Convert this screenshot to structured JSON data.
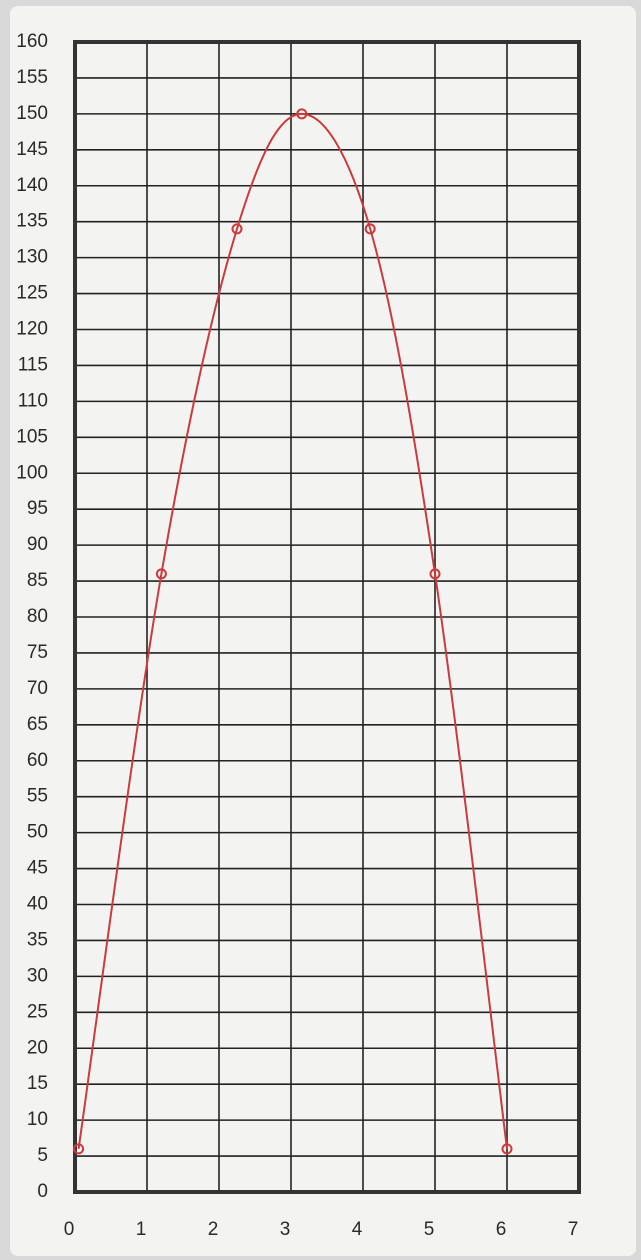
{
  "chart_data": {
    "type": "line",
    "x": [
      0.05,
      1.2,
      2.25,
      3.15,
      4.1,
      5.0,
      6.0
    ],
    "series": [
      {
        "color": "#cc3b3b",
        "values": [
          6,
          86,
          134,
          150,
          134,
          86,
          6
        ]
      }
    ],
    "xlim": [
      0,
      7
    ],
    "xticks": [
      0,
      1,
      2,
      3,
      4,
      5,
      6,
      7
    ],
    "ylim": [
      0,
      160
    ],
    "yticks": [
      0,
      5,
      10,
      15,
      20,
      25,
      30,
      35,
      40,
      45,
      50,
      55,
      60,
      65,
      70,
      75,
      80,
      85,
      90,
      95,
      100,
      105,
      110,
      115,
      120,
      125,
      130,
      135,
      140,
      145,
      150,
      155,
      160
    ],
    "grid": true
  }
}
